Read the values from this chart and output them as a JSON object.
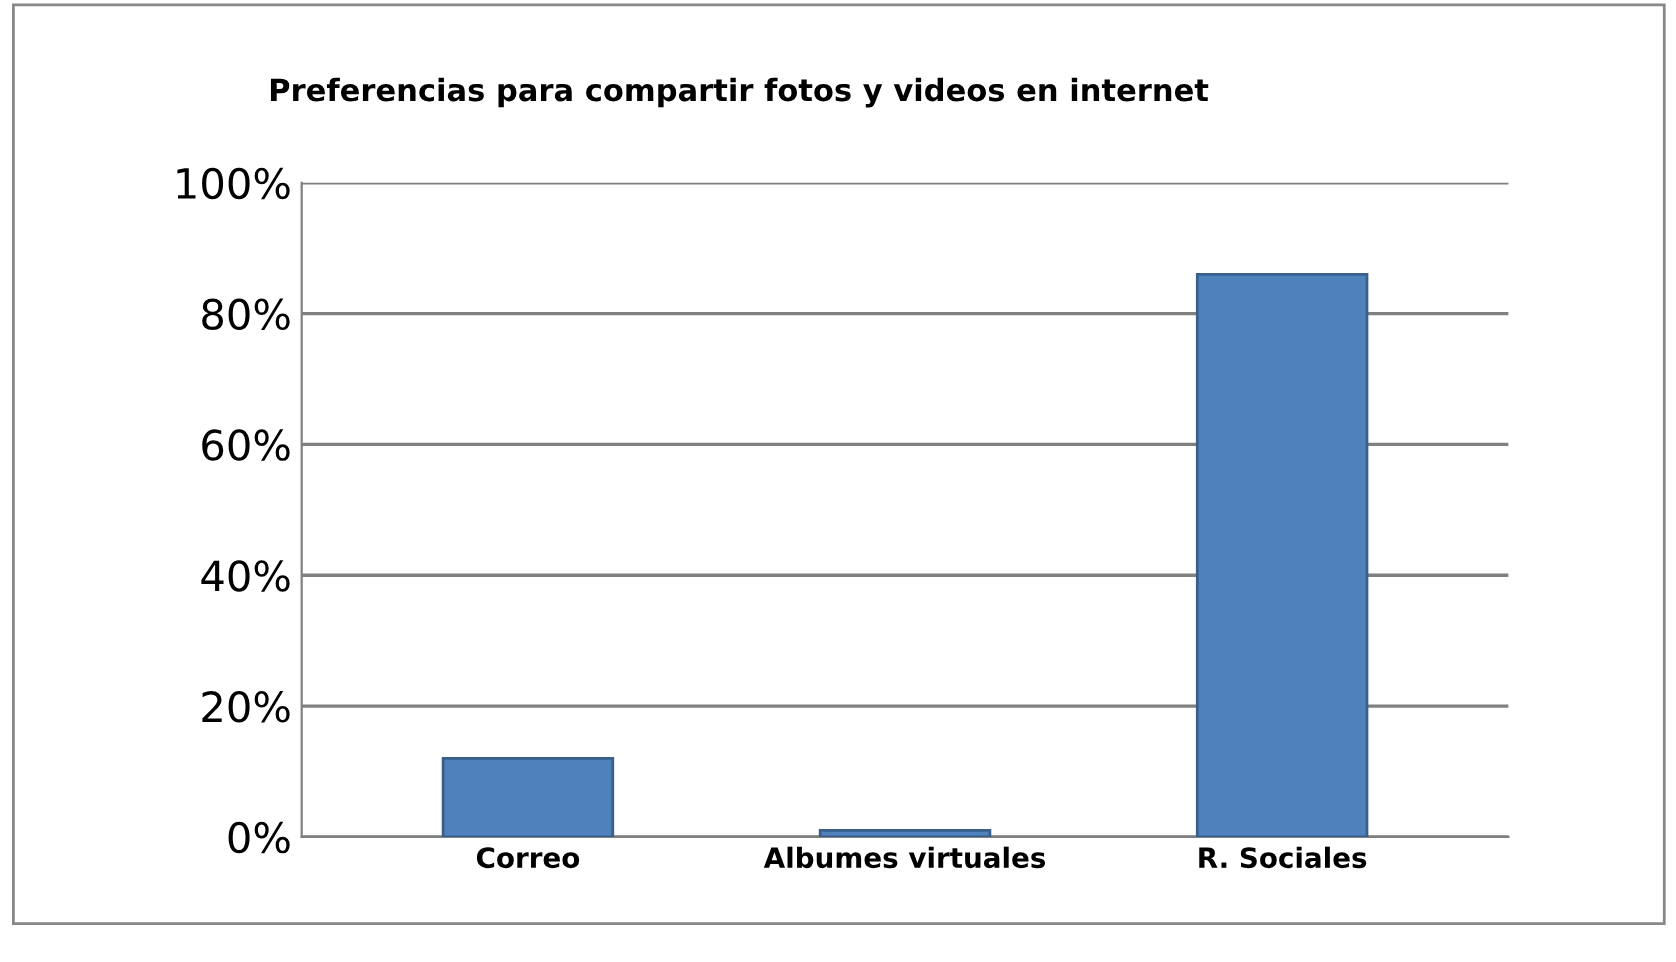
{
  "chart_data": {
    "type": "bar",
    "title": "Preferencias para compartir fotos y videos en internet",
    "categories": [
      "Correo",
      "Albumes virtuales",
      "R. Sociales"
    ],
    "values": [
      12,
      1,
      86
    ],
    "color": "#4f81bd",
    "ylim": [
      0,
      100
    ],
    "yticks": [
      {
        "value": 0,
        "label": "0%"
      },
      {
        "value": 20,
        "label": "20%"
      },
      {
        "value": 40,
        "label": "40%"
      },
      {
        "value": 60,
        "label": "60%"
      },
      {
        "value": 80,
        "label": "80%"
      },
      {
        "value": 100,
        "label": "100%"
      }
    ],
    "grid": "y",
    "legend": false
  }
}
